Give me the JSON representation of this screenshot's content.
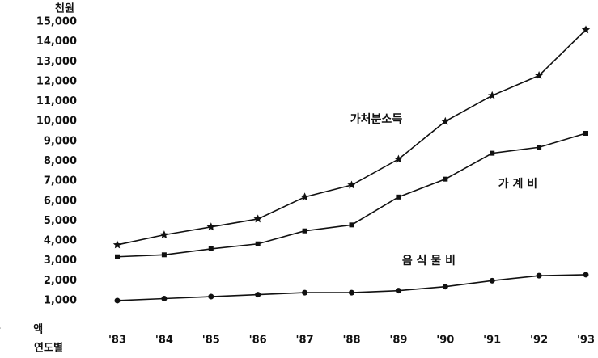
{
  "chart_data": {
    "type": "line",
    "y_unit": "천원",
    "y_label": "금 액",
    "x_label": "연도별",
    "categories": [
      "'83",
      "'84",
      "'85",
      "'86",
      "'87",
      "'88",
      "'89",
      "'90",
      "'91",
      "'92",
      "'93"
    ],
    "series": [
      {
        "name": "가처분소득",
        "color": "#111111",
        "marker": "star",
        "values": [
          3800,
          4300,
          4700,
          5100,
          6200,
          6800,
          8100,
          10000,
          11300,
          12300,
          14600
        ]
      },
      {
        "name": "가 계 비",
        "color": "#111111",
        "marker": "square",
        "values": [
          3200,
          3300,
          3600,
          3850,
          4500,
          4800,
          6200,
          7100,
          8400,
          8700,
          9400
        ]
      },
      {
        "name": "음 식 물 비",
        "color": "#111111",
        "marker": "circle",
        "values": [
          1000,
          1100,
          1200,
          1300,
          1400,
          1400,
          1500,
          1700,
          2000,
          2250,
          2300
        ]
      }
    ],
    "ylim": [
      0,
      15000
    ],
    "yticks": [
      {
        "value": 1000,
        "label": "1,000"
      },
      {
        "value": 2000,
        "label": "2,000"
      },
      {
        "value": 3000,
        "label": "3,000"
      },
      {
        "value": 4000,
        "label": "4,000"
      },
      {
        "value": 5000,
        "label": "5,000"
      },
      {
        "value": 6000,
        "label": "6,000"
      },
      {
        "value": 7000,
        "label": "7,000"
      },
      {
        "value": 8000,
        "label": "8,000"
      },
      {
        "value": 9000,
        "label": "9,000"
      },
      {
        "value": 10000,
        "label": "10,000"
      },
      {
        "value": 11000,
        "label": "11,000"
      },
      {
        "value": 12000,
        "label": "12,000"
      },
      {
        "value": 13000,
        "label": "13,000"
      },
      {
        "value": 14000,
        "label": "14,000"
      },
      {
        "value": 15000,
        "label": "15,000"
      }
    ],
    "grid": false
  }
}
